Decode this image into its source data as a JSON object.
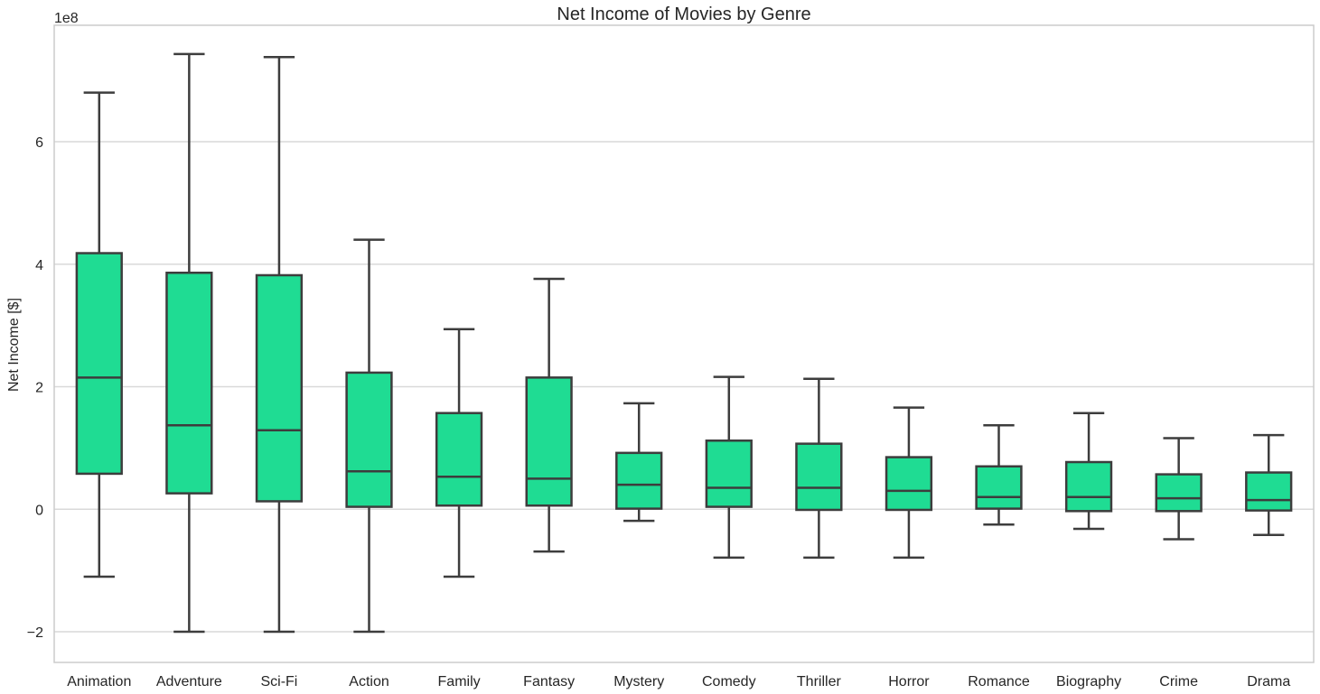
{
  "chart_data": {
    "type": "boxplot",
    "title": "Net Income of Movies by Genre",
    "xlabel": "",
    "ylabel": "Net Income [$]",
    "y_offset_label": "1e8",
    "ylim": [
      -2.5,
      7.9
    ],
    "yticks": [
      -2,
      0,
      2,
      4,
      6
    ],
    "ytick_labels": [
      "−2",
      "0",
      "2",
      "4",
      "6"
    ],
    "grid": true,
    "colors": {
      "box_fill": "#1fdc93",
      "box_edge": "#3d3d3d",
      "grid": "#d9d9d9",
      "frame": "#cccccc"
    },
    "categories": [
      "Animation",
      "Adventure",
      "Sci-Fi",
      "Action",
      "Family",
      "Fantasy",
      "Mystery",
      "Comedy",
      "Thriller",
      "Horror",
      "Romance",
      "Biography",
      "Crime",
      "Drama"
    ],
    "boxes": [
      {
        "whisker_low": -1.1,
        "q1": 0.58,
        "median": 2.15,
        "q3": 4.18,
        "whisker_high": 6.8
      },
      {
        "whisker_low": -2.0,
        "q1": 0.26,
        "median": 1.37,
        "q3": 3.86,
        "whisker_high": 7.43
      },
      {
        "whisker_low": -2.0,
        "q1": 0.13,
        "median": 1.29,
        "q3": 3.82,
        "whisker_high": 7.38
      },
      {
        "whisker_low": -2.0,
        "q1": 0.04,
        "median": 0.62,
        "q3": 2.23,
        "whisker_high": 4.4
      },
      {
        "whisker_low": -1.1,
        "q1": 0.06,
        "median": 0.53,
        "q3": 1.57,
        "whisker_high": 2.94
      },
      {
        "whisker_low": -0.69,
        "q1": 0.06,
        "median": 0.5,
        "q3": 2.15,
        "whisker_high": 3.76
      },
      {
        "whisker_low": -0.19,
        "q1": 0.01,
        "median": 0.4,
        "q3": 0.92,
        "whisker_high": 1.73
      },
      {
        "whisker_low": -0.79,
        "q1": 0.04,
        "median": 0.35,
        "q3": 1.12,
        "whisker_high": 2.16
      },
      {
        "whisker_low": -0.79,
        "q1": -0.01,
        "median": 0.35,
        "q3": 1.07,
        "whisker_high": 2.13
      },
      {
        "whisker_low": -0.79,
        "q1": -0.01,
        "median": 0.3,
        "q3": 0.85,
        "whisker_high": 1.66
      },
      {
        "whisker_low": -0.25,
        "q1": 0.01,
        "median": 0.2,
        "q3": 0.7,
        "whisker_high": 1.37
      },
      {
        "whisker_low": -0.32,
        "q1": -0.03,
        "median": 0.2,
        "q3": 0.77,
        "whisker_high": 1.57
      },
      {
        "whisker_low": -0.49,
        "q1": -0.03,
        "median": 0.18,
        "q3": 0.57,
        "whisker_high": 1.16
      },
      {
        "whisker_low": -0.42,
        "q1": -0.02,
        "median": 0.15,
        "q3": 0.6,
        "whisker_high": 1.21
      }
    ]
  }
}
